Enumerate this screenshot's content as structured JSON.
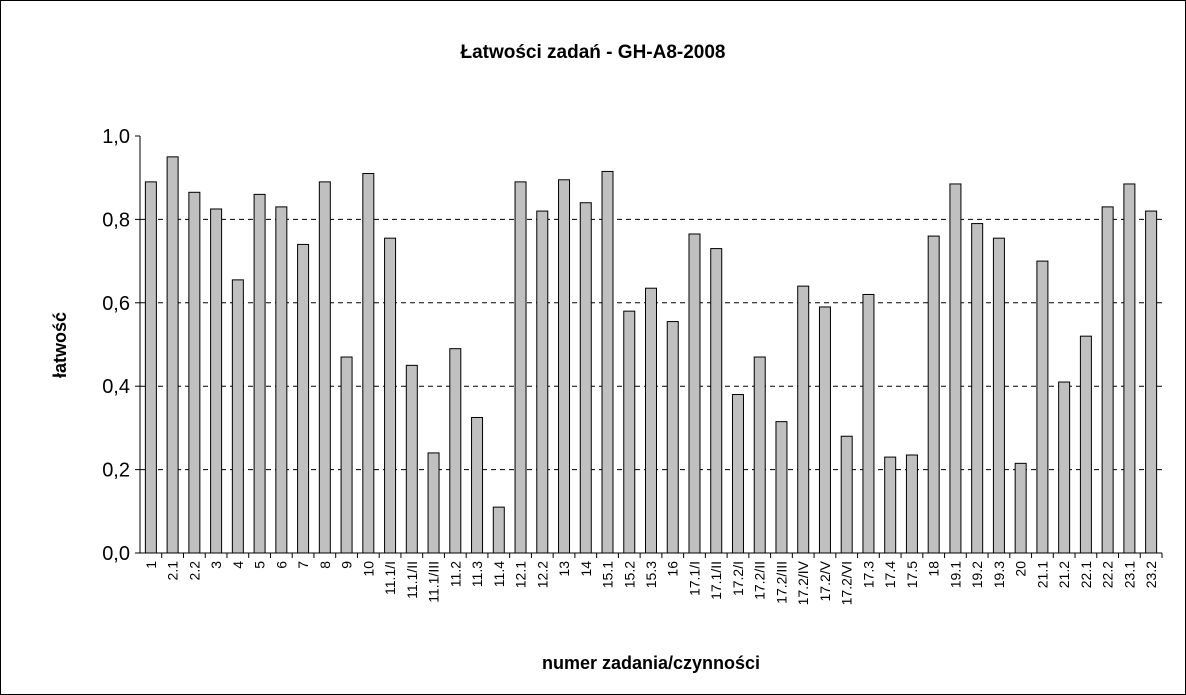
{
  "chart_data": {
    "type": "bar",
    "title": "Łatwości zadań - GH-A8-2008",
    "x_label": "numer zadania/czynności",
    "y_label": "łatwość",
    "categories": [
      "1",
      "2.1",
      "2.2",
      "3",
      "4",
      "5",
      "6",
      "7",
      "8",
      "9",
      "10",
      "11.1/I",
      "11.1/II",
      "11.1/III",
      "11.2",
      "11.3",
      "11.4",
      "12.1",
      "12.2",
      "13",
      "14",
      "15.1",
      "15.2",
      "15.3",
      "16",
      "17.1/I",
      "17.1/II",
      "17.2/I",
      "17.2/II",
      "17.2/III",
      "17.2/IV",
      "17.2/V",
      "17.2/VI",
      "17.3",
      "17.4",
      "17.5",
      "18",
      "19.1",
      "19.2",
      "19.3",
      "20",
      "21.1",
      "21.2",
      "22.1",
      "22.2",
      "23.1",
      "23.2"
    ],
    "values": [
      0.89,
      0.95,
      0.865,
      0.825,
      0.655,
      0.86,
      0.83,
      0.74,
      0.89,
      0.47,
      0.91,
      0.755,
      0.45,
      0.24,
      0.49,
      0.325,
      0.11,
      0.89,
      0.82,
      0.895,
      0.84,
      0.915,
      0.58,
      0.635,
      0.555,
      0.765,
      0.73,
      0.38,
      0.47,
      0.315,
      0.64,
      0.59,
      0.28,
      0.62,
      0.23,
      0.235,
      0.76,
      0.885,
      0.79,
      0.755,
      0.215,
      0.7,
      0.41,
      0.52,
      0.83,
      0.885,
      0.82
    ],
    "color": "#c0c0c0",
    "ylim": [
      0,
      1
    ],
    "yticks": [
      {
        "value": 0,
        "label": "0,0"
      },
      {
        "value": 0.2,
        "label": "0,2"
      },
      {
        "value": 0.4,
        "label": "0,4"
      },
      {
        "value": 0.6,
        "label": "0,6"
      },
      {
        "value": 0.8,
        "label": "0,8"
      },
      {
        "value": 1,
        "label": "1,0"
      }
    ],
    "grid": true
  }
}
